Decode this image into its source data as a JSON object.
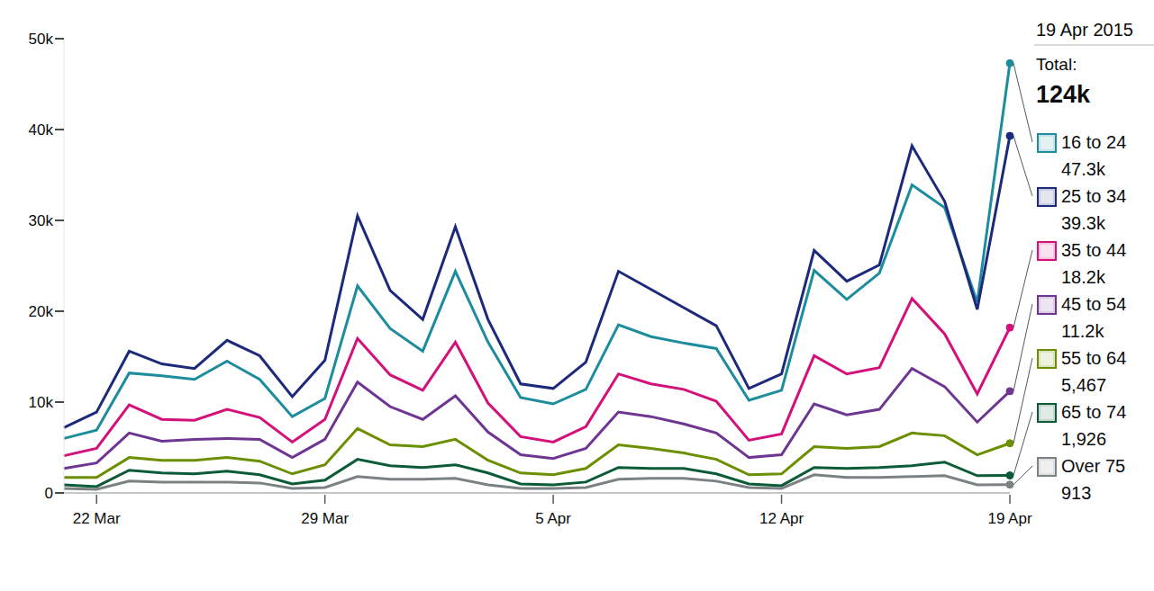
{
  "chart_data": {
    "type": "line",
    "x": [
      null,
      "22 Mar",
      null,
      null,
      null,
      null,
      null,
      null,
      "29 Mar",
      null,
      null,
      null,
      null,
      null,
      null,
      "5 Apr",
      null,
      null,
      null,
      null,
      null,
      null,
      "12 Apr",
      null,
      null,
      null,
      null,
      null,
      null,
      "19 Apr"
    ],
    "ylim": [
      0,
      50000
    ],
    "yticks": [
      0,
      {
        "value": 10000,
        "label": "10k"
      },
      {
        "value": 20000,
        "label": "20k"
      },
      {
        "value": 30000,
        "label": "30k"
      },
      {
        "value": 40000,
        "label": "40k"
      },
      {
        "value": 50000,
        "label": "50k"
      }
    ],
    "grid": false,
    "panel": {
      "date": "19 Apr 2015",
      "total_label": "Total:",
      "total": {
        "value": 124000,
        "label": "124k"
      }
    },
    "series": [
      {
        "name": "16 to 24",
        "color": "#1d8d9e",
        "last_label": "47.3k",
        "values": [
          6000,
          6900,
          13200,
          12900,
          12500,
          14500,
          12500,
          8400,
          10400,
          22800,
          18100,
          15600,
          24400,
          16600,
          10500,
          9800,
          11400,
          18500,
          17200,
          16500,
          15900,
          10200,
          11300,
          24500,
          21300,
          24200,
          33900,
          31400,
          21000,
          47300
        ]
      },
      {
        "name": "25 to 34",
        "color": "#1d2a7c",
        "last_label": "39.3k",
        "values": [
          7200,
          8900,
          15600,
          14200,
          13700,
          16800,
          15100,
          10600,
          14600,
          30500,
          22300,
          19100,
          29300,
          19100,
          12000,
          11500,
          14400,
          24400,
          22400,
          20400,
          18400,
          11500,
          13100,
          26700,
          23300,
          25100,
          38200,
          32100,
          20200,
          39300
        ]
      },
      {
        "name": "35 to 44",
        "color": "#d4117a",
        "last_label": "18.2k",
        "values": [
          4100,
          4900,
          9700,
          8100,
          8000,
          9200,
          8300,
          5600,
          8100,
          17000,
          13000,
          11300,
          16600,
          9900,
          6200,
          5600,
          7300,
          13100,
          12000,
          11400,
          10100,
          5800,
          6500,
          15100,
          13100,
          13800,
          21400,
          17500,
          10900,
          18200
        ]
      },
      {
        "name": "45 to 54",
        "color": "#6e3593",
        "last_label": "11.2k",
        "values": [
          2700,
          3300,
          6600,
          5700,
          5900,
          6000,
          5900,
          3900,
          5900,
          12200,
          9500,
          8100,
          10700,
          6700,
          4200,
          3800,
          4900,
          8900,
          8400,
          7600,
          6600,
          3900,
          4200,
          9800,
          8600,
          9200,
          13700,
          11700,
          7800,
          11200
        ]
      },
      {
        "name": "55 to 64",
        "color": "#6c8f00",
        "last_label": "5,467",
        "values": [
          1700,
          1700,
          3900,
          3600,
          3600,
          3900,
          3500,
          2100,
          3100,
          7100,
          5300,
          5100,
          5900,
          3600,
          2200,
          2000,
          2700,
          5300,
          4900,
          4400,
          3700,
          2000,
          2100,
          5100,
          4900,
          5100,
          6600,
          6300,
          4200,
          5467
        ]
      },
      {
        "name": "65 to 74",
        "color": "#0b5c36",
        "last_label": "1,926",
        "values": [
          900,
          700,
          2500,
          2200,
          2100,
          2400,
          2000,
          1000,
          1400,
          3700,
          3000,
          2800,
          3100,
          2200,
          1000,
          900,
          1200,
          2800,
          2700,
          2700,
          2100,
          1000,
          800,
          2800,
          2700,
          2800,
          3000,
          3400,
          1900,
          1926
        ]
      },
      {
        "name": "Over 75",
        "color": "#7c8184",
        "last_label": "913",
        "values": [
          500,
          400,
          1300,
          1200,
          1200,
          1200,
          1100,
          500,
          600,
          1800,
          1500,
          1500,
          1600,
          900,
          500,
          500,
          600,
          1500,
          1600,
          1600,
          1300,
          600,
          500,
          2000,
          1700,
          1700,
          1800,
          1900,
          900,
          913
        ]
      }
    ]
  }
}
